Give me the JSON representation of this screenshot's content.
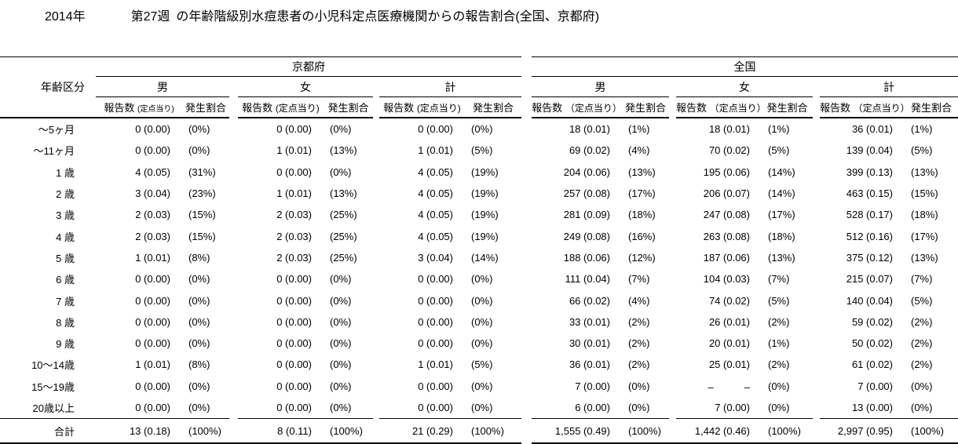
{
  "title": {
    "year": "2014年",
    "week": "第27週",
    "rest": "の年齢階級別水痘患者の小児科定点医療機関からの報告割合(全国、京都府)"
  },
  "chart_data": {
    "type": "table",
    "title": "2014年 第27週 の年齢階級別水痘患者の小児科定点医療機関からの報告割合(全国、京都府)",
    "row_header": "年齢区分",
    "regions": [
      "京都府",
      "全国"
    ],
    "genders": [
      "男",
      "女",
      "計"
    ],
    "subheaders": [
      {
        "report": "報告数",
        "paren": "(定点当り)",
        "rate": "発生割合"
      },
      {
        "report": "報告数",
        "paren": "(定点当り)",
        "rate": "発生割合"
      },
      {
        "report": "報告数",
        "paren": "(定点当り)",
        "rate": "発生割合"
      },
      {
        "report": "報告数",
        "paren": "（定点当り）",
        "rate": "発生割合"
      },
      {
        "report": "報告数",
        "paren": "（定点当り）",
        "rate": "発生割合"
      },
      {
        "report": "報告数",
        "paren": "（定点当り）",
        "rate": "発生割合"
      }
    ],
    "column_order": [
      "京都府-男-報告数(定点当り)",
      "京都府-男-発生割合",
      "京都府-女-報告数(定点当り)",
      "京都府-女-発生割合",
      "京都府-計-報告数(定点当り)",
      "京都府-計-発生割合",
      "全国-男-報告数(定点当り)",
      "全国-男-発生割合",
      "全国-女-報告数(定点当り)",
      "全国-女-発生割合",
      "全国-計-報告数(定点当り)",
      "全国-計-発生割合"
    ],
    "rows": [
      {
        "label": "～5ヶ月",
        "cells": [
          "0 (0.00)",
          "(0%)",
          "0 (0.00)",
          "(0%)",
          "0 (0.00)",
          "(0%)",
          "18 (0.01)",
          "(1%)",
          "18 (0.01)",
          "(1%)",
          "36 (0.01)",
          "(1%)"
        ]
      },
      {
        "label": "～11ヶ月",
        "cells": [
          "0 (0.00)",
          "(0%)",
          "1 (0.01)",
          "(13%)",
          "1 (0.01)",
          "(5%)",
          "69 (0.02)",
          "(4%)",
          "70 (0.02)",
          "(5%)",
          "139 (0.04)",
          "(5%)"
        ]
      },
      {
        "label": "1 歳",
        "cells": [
          "4 (0.05)",
          "(31%)",
          "0 (0.00)",
          "(0%)",
          "4 (0.05)",
          "(19%)",
          "204 (0.06)",
          "(13%)",
          "195 (0.06)",
          "(14%)",
          "399 (0.13)",
          "(13%)"
        ]
      },
      {
        "label": "2 歳",
        "cells": [
          "3 (0.04)",
          "(23%)",
          "1 (0.01)",
          "(13%)",
          "4 (0.05)",
          "(19%)",
          "257 (0.08)",
          "(17%)",
          "206 (0.07)",
          "(14%)",
          "463 (0.15)",
          "(15%)"
        ]
      },
      {
        "label": "3 歳",
        "cells": [
          "2 (0.03)",
          "(15%)",
          "2 (0.03)",
          "(25%)",
          "4 (0.05)",
          "(19%)",
          "281 (0.09)",
          "(18%)",
          "247 (0.08)",
          "(17%)",
          "528 (0.17)",
          "(18%)"
        ]
      },
      {
        "label": "4 歳",
        "cells": [
          "2 (0.03)",
          "(15%)",
          "2 (0.03)",
          "(25%)",
          "4 (0.05)",
          "(19%)",
          "249 (0.08)",
          "(16%)",
          "263 (0.08)",
          "(18%)",
          "512 (0.16)",
          "(17%)"
        ]
      },
      {
        "label": "5 歳",
        "cells": [
          "1 (0.01)",
          "(8%)",
          "2 (0.03)",
          "(25%)",
          "3 (0.04)",
          "(14%)",
          "188 (0.06)",
          "(12%)",
          "187 (0.06)",
          "(13%)",
          "375 (0.12)",
          "(13%)"
        ]
      },
      {
        "label": "6 歳",
        "cells": [
          "0 (0.00)",
          "(0%)",
          "0 (0.00)",
          "(0%)",
          "0 (0.00)",
          "(0%)",
          "111 (0.04)",
          "(7%)",
          "104 (0.03)",
          "(7%)",
          "215 (0.07)",
          "(7%)"
        ]
      },
      {
        "label": "7 歳",
        "cells": [
          "0 (0.00)",
          "(0%)",
          "0 (0.00)",
          "(0%)",
          "0 (0.00)",
          "(0%)",
          "66 (0.02)",
          "(4%)",
          "74 (0.02)",
          "(5%)",
          "140 (0.04)",
          "(5%)"
        ]
      },
      {
        "label": "8 歳",
        "cells": [
          "0 (0.00)",
          "(0%)",
          "0 (0.00)",
          "(0%)",
          "0 (0.00)",
          "(0%)",
          "33 (0.01)",
          "(2%)",
          "26 (0.01)",
          "(2%)",
          "59 (0.02)",
          "(2%)"
        ]
      },
      {
        "label": "9 歳",
        "cells": [
          "0 (0.00)",
          "(0%)",
          "0 (0.00)",
          "(0%)",
          "0 (0.00)",
          "(0%)",
          "30 (0.01)",
          "(2%)",
          "20 (0.01)",
          "(1%)",
          "50 (0.02)",
          "(2%)"
        ]
      },
      {
        "label": "10～14歳",
        "cells": [
          "1 (0.01)",
          "(8%)",
          "0 (0.00)",
          "(0%)",
          "1 (0.01)",
          "(5%)",
          "36 (0.01)",
          "(2%)",
          "25 (0.01)",
          "(2%)",
          "61 (0.02)",
          "(2%)"
        ]
      },
      {
        "label": "15～19歳",
        "cells": [
          "0 (0.00)",
          "(0%)",
          "0 (0.00)",
          "(0%)",
          "0 (0.00)",
          "(0%)",
          "7 (0.00)",
          "(0%)",
          "–　　　–",
          "(0%)",
          "7 (0.00)",
          "(0%)"
        ]
      },
      {
        "label": "20歳以上",
        "cells": [
          "0 (0.00)",
          "(0%)",
          "0 (0.00)",
          "(0%)",
          "0 (0.00)",
          "(0%)",
          "6 (0.00)",
          "(0%)",
          "7 (0.00)",
          "(0%)",
          "13 (0.00)",
          "(0%)"
        ]
      }
    ],
    "total_row": {
      "label": "合計",
      "cells": [
        "13 (0.18)",
        "(100%)",
        "8 (0.11)",
        "(100%)",
        "21 (0.29)",
        "(100%)",
        "1,555 (0.49)",
        "(100%)",
        "1,442 (0.46)",
        "(100%)",
        "2,997 (0.95)",
        "(100%)"
      ]
    }
  }
}
